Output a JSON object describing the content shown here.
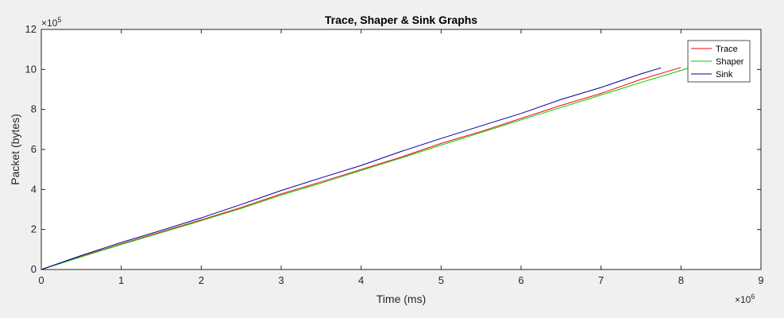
{
  "chart_data": {
    "type": "line",
    "title": "Trace, Shaper & Sink Graphs",
    "xlabel": "Time (ms)",
    "ylabel": "Packet (bytes)",
    "x_multiplier": "×10",
    "x_multiplier_exp": "6",
    "y_multiplier": "×10",
    "y_multiplier_exp": "5",
    "xlim": [
      0,
      9
    ],
    "ylim": [
      0,
      12
    ],
    "xticks": [
      "0",
      "1",
      "2",
      "3",
      "4",
      "5",
      "6",
      "7",
      "8",
      "9"
    ],
    "yticks": [
      "0",
      "2",
      "4",
      "6",
      "8",
      "10",
      "12"
    ],
    "grid": false,
    "legend_position": "top-right",
    "series": [
      {
        "name": "Trace",
        "color": "#ff0000",
        "points": [
          [
            0,
            0
          ],
          [
            0.5,
            0.65
          ],
          [
            1,
            1.28
          ],
          [
            1.5,
            1.88
          ],
          [
            2,
            2.48
          ],
          [
            2.5,
            3.1
          ],
          [
            3,
            3.78
          ],
          [
            3.5,
            4.38
          ],
          [
            4,
            5.0
          ],
          [
            4.5,
            5.62
          ],
          [
            5,
            6.3
          ],
          [
            5.5,
            6.9
          ],
          [
            6,
            7.55
          ],
          [
            6.5,
            8.2
          ],
          [
            7,
            8.8
          ],
          [
            7.5,
            9.5
          ],
          [
            8,
            10.1
          ]
        ]
      },
      {
        "name": "Shaper",
        "color": "#00cc00",
        "points": [
          [
            0,
            0
          ],
          [
            0.5,
            0.63
          ],
          [
            1,
            1.25
          ],
          [
            1.5,
            1.84
          ],
          [
            2,
            2.44
          ],
          [
            2.5,
            3.05
          ],
          [
            3,
            3.72
          ],
          [
            3.5,
            4.32
          ],
          [
            4,
            4.95
          ],
          [
            4.5,
            5.57
          ],
          [
            5,
            6.22
          ],
          [
            5.5,
            6.85
          ],
          [
            6,
            7.48
          ],
          [
            6.5,
            8.1
          ],
          [
            7,
            8.72
          ],
          [
            7.5,
            9.35
          ],
          [
            8,
            9.95
          ],
          [
            8.1,
            10.08
          ]
        ]
      },
      {
        "name": "Sink",
        "color": "#000099",
        "points": [
          [
            0,
            0
          ],
          [
            0.5,
            0.7
          ],
          [
            1,
            1.35
          ],
          [
            1.5,
            1.95
          ],
          [
            2,
            2.58
          ],
          [
            2.5,
            3.25
          ],
          [
            3,
            3.95
          ],
          [
            3.5,
            4.58
          ],
          [
            4,
            5.2
          ],
          [
            4.5,
            5.9
          ],
          [
            5,
            6.55
          ],
          [
            5.5,
            7.18
          ],
          [
            6,
            7.8
          ],
          [
            6.5,
            8.5
          ],
          [
            7,
            9.1
          ],
          [
            7.5,
            9.78
          ],
          [
            7.75,
            10.08
          ]
        ]
      }
    ]
  }
}
